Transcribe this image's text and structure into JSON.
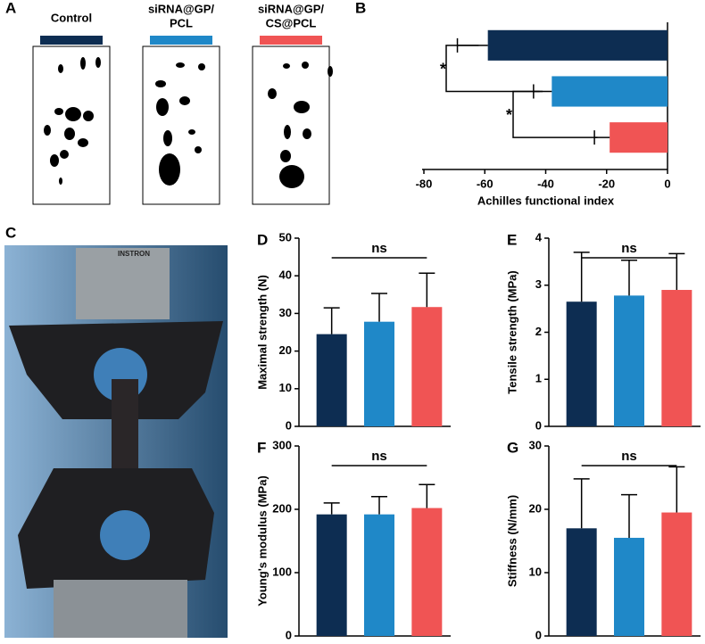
{
  "panel_labels": [
    "A",
    "B",
    "C",
    "D",
    "E",
    "F",
    "G"
  ],
  "groups": [
    {
      "lines": [
        "Control"
      ],
      "color": "#0d2d52"
    },
    {
      "lines": [
        "siRNA@GP/",
        "PCL"
      ],
      "color": "#1f88c8"
    },
    {
      "lines": [
        "siRNA@GP/",
        "CS@PCL"
      ],
      "color": "#f05454"
    }
  ],
  "photo_text": "INSTRON",
  "chart_data": [
    {
      "type": "bar",
      "orientation": "horizontal",
      "xlabel": "Achilles functional index",
      "categories": [
        null,
        null,
        null
      ],
      "values": [
        -59,
        -38,
        -19
      ],
      "errors": [
        10,
        6,
        5
      ],
      "colors": [
        "#0d2d52",
        "#1f88c8",
        "#f05454"
      ],
      "xlim": [
        -80,
        0
      ],
      "xticks": [
        -80,
        -60,
        -40,
        -20,
        0
      ],
      "annotations": [
        "*",
        "*"
      ]
    },
    {
      "type": "bar",
      "ylabel": "Maximal strength (N)",
      "categories": [
        null,
        null,
        null
      ],
      "values": [
        24.5,
        27.8,
        31.7
      ],
      "errors": [
        7,
        7.5,
        9
      ],
      "colors": [
        "#0d2d52",
        "#1f88c8",
        "#f05454"
      ],
      "ylim": [
        0,
        50
      ],
      "yticks": [
        0,
        10,
        20,
        30,
        40,
        50
      ],
      "annotations": [
        "ns"
      ]
    },
    {
      "type": "bar",
      "ylabel": "Tensile strength (MPa)",
      "categories": [
        null,
        null,
        null
      ],
      "values": [
        2.65,
        2.78,
        2.9
      ],
      "errors": [
        1.05,
        0.75,
        0.77
      ],
      "colors": [
        "#0d2d52",
        "#1f88c8",
        "#f05454"
      ],
      "ylim": [
        0,
        4
      ],
      "yticks": [
        0,
        1,
        2,
        3,
        4
      ],
      "annotations": [
        "ns"
      ]
    },
    {
      "type": "bar",
      "ylabel": "Young's modulus (MPa)",
      "categories": [
        null,
        null,
        null
      ],
      "values": [
        192,
        192,
        202
      ],
      "errors": [
        18,
        28,
        37
      ],
      "colors": [
        "#0d2d52",
        "#1f88c8",
        "#f05454"
      ],
      "ylim": [
        0,
        300
      ],
      "yticks": [
        0,
        100,
        200,
        300
      ],
      "annotations": [
        "ns"
      ]
    },
    {
      "type": "bar",
      "ylabel": "Stiffness  (N/mm)",
      "categories": [
        null,
        null,
        null
      ],
      "values": [
        17,
        15.5,
        19.5
      ],
      "errors": [
        7.8,
        6.8,
        7.2
      ],
      "colors": [
        "#0d2d52",
        "#1f88c8",
        "#f05454"
      ],
      "ylim": [
        0,
        30
      ],
      "yticks": [
        0,
        10,
        20,
        30
      ],
      "annotations": [
        "ns"
      ]
    }
  ]
}
